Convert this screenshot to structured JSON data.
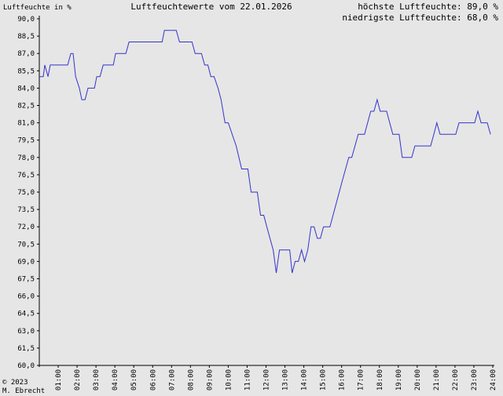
{
  "chart_data": {
    "type": "line",
    "title": "Luftfeuchtewerte vom 22.01.2026",
    "ylabel": "Luftfeuchte in %",
    "max_label": "höchste Luftfeuchte: 89,0 %",
    "min_label": "niedrigste Luftfeuchte: 68,0 %",
    "ylim": [
      60,
      90
    ],
    "xlim": [
      0,
      24
    ],
    "y_ticks": [
      {
        "value": 60.0,
        "label": "60,0"
      },
      {
        "value": 61.5,
        "label": "61,5"
      },
      {
        "value": 63.0,
        "label": "63,0"
      },
      {
        "value": 64.5,
        "label": "64,5"
      },
      {
        "value": 66.0,
        "label": "66,0"
      },
      {
        "value": 67.5,
        "label": "67,5"
      },
      {
        "value": 69.0,
        "label": "69,0"
      },
      {
        "value": 70.5,
        "label": "70,5"
      },
      {
        "value": 72.0,
        "label": "72,0"
      },
      {
        "value": 73.5,
        "label": "73,5"
      },
      {
        "value": 75.0,
        "label": "75,0"
      },
      {
        "value": 76.5,
        "label": "76,5"
      },
      {
        "value": 78.0,
        "label": "78,0"
      },
      {
        "value": 79.5,
        "label": "79,5"
      },
      {
        "value": 81.0,
        "label": "81,0"
      },
      {
        "value": 82.5,
        "label": "82,5"
      },
      {
        "value": 84.0,
        "label": "84,0"
      },
      {
        "value": 85.5,
        "label": "85,5"
      },
      {
        "value": 87.0,
        "label": "87,0"
      },
      {
        "value": 88.5,
        "label": "88,5"
      },
      {
        "value": 90.0,
        "label": "90,0"
      }
    ],
    "x_ticks": [
      {
        "value": 1,
        "label": "01:00"
      },
      {
        "value": 2,
        "label": "02:00"
      },
      {
        "value": 3,
        "label": "03:00"
      },
      {
        "value": 4,
        "label": "04:00"
      },
      {
        "value": 5,
        "label": "05:00"
      },
      {
        "value": 6,
        "label": "06:00"
      },
      {
        "value": 7,
        "label": "07:00"
      },
      {
        "value": 8,
        "label": "08:00"
      },
      {
        "value": 9,
        "label": "09:00"
      },
      {
        "value": 10,
        "label": "10:00"
      },
      {
        "value": 11,
        "label": "11:00"
      },
      {
        "value": 12,
        "label": "12:00"
      },
      {
        "value": 13,
        "label": "13:00"
      },
      {
        "value": 14,
        "label": "14:00"
      },
      {
        "value": 15,
        "label": "15:00"
      },
      {
        "value": 16,
        "label": "16:00"
      },
      {
        "value": 17,
        "label": "17:00"
      },
      {
        "value": 18,
        "label": "18:00"
      },
      {
        "value": 19,
        "label": "19:00"
      },
      {
        "value": 20,
        "label": "20:00"
      },
      {
        "value": 21,
        "label": "21:00"
      },
      {
        "value": 22,
        "label": "22:00"
      },
      {
        "value": 23,
        "label": "23:00"
      },
      {
        "value": 24,
        "label": "24:00"
      }
    ],
    "grid": false,
    "line_color": "#3333cc",
    "series": [
      {
        "points": [
          [
            0.0,
            85.0
          ],
          [
            0.21,
            85.0
          ],
          [
            0.29,
            86.0
          ],
          [
            0.46,
            85.0
          ],
          [
            0.58,
            86.0
          ],
          [
            1.5,
            86.0
          ],
          [
            1.67,
            87.0
          ],
          [
            1.79,
            87.0
          ],
          [
            1.92,
            85.0
          ],
          [
            2.12,
            84.0
          ],
          [
            2.25,
            83.0
          ],
          [
            2.42,
            83.0
          ],
          [
            2.58,
            84.0
          ],
          [
            2.92,
            84.0
          ],
          [
            3.04,
            85.0
          ],
          [
            3.21,
            85.0
          ],
          [
            3.38,
            86.0
          ],
          [
            3.92,
            86.0
          ],
          [
            4.04,
            87.0
          ],
          [
            4.58,
            87.0
          ],
          [
            4.75,
            88.0
          ],
          [
            6.5,
            88.0
          ],
          [
            6.62,
            89.0
          ],
          [
            7.25,
            89.0
          ],
          [
            7.42,
            88.0
          ],
          [
            8.08,
            88.0
          ],
          [
            8.25,
            87.0
          ],
          [
            8.58,
            87.0
          ],
          [
            8.75,
            86.0
          ],
          [
            8.92,
            86.0
          ],
          [
            9.08,
            85.0
          ],
          [
            9.25,
            85.0
          ],
          [
            9.46,
            84.0
          ],
          [
            9.62,
            83.0
          ],
          [
            9.83,
            81.0
          ],
          [
            10.0,
            81.0
          ],
          [
            10.42,
            79.0
          ],
          [
            10.71,
            77.0
          ],
          [
            11.04,
            77.0
          ],
          [
            11.21,
            75.0
          ],
          [
            11.54,
            75.0
          ],
          [
            11.71,
            73.0
          ],
          [
            11.88,
            73.0
          ],
          [
            12.04,
            72.0
          ],
          [
            12.21,
            71.0
          ],
          [
            12.38,
            70.0
          ],
          [
            12.54,
            68.0
          ],
          [
            12.71,
            70.0
          ],
          [
            13.25,
            70.0
          ],
          [
            13.38,
            68.0
          ],
          [
            13.54,
            69.0
          ],
          [
            13.71,
            69.0
          ],
          [
            13.88,
            70.0
          ],
          [
            14.04,
            69.0
          ],
          [
            14.21,
            70.0
          ],
          [
            14.38,
            72.0
          ],
          [
            14.54,
            72.0
          ],
          [
            14.71,
            71.0
          ],
          [
            14.88,
            71.0
          ],
          [
            15.04,
            72.0
          ],
          [
            15.38,
            72.0
          ],
          [
            15.71,
            74.0
          ],
          [
            16.04,
            76.0
          ],
          [
            16.38,
            78.0
          ],
          [
            16.54,
            78.0
          ],
          [
            16.88,
            80.0
          ],
          [
            17.21,
            80.0
          ],
          [
            17.54,
            82.0
          ],
          [
            17.71,
            82.0
          ],
          [
            17.88,
            83.0
          ],
          [
            18.04,
            82.0
          ],
          [
            18.38,
            82.0
          ],
          [
            18.71,
            80.0
          ],
          [
            19.04,
            80.0
          ],
          [
            19.21,
            78.0
          ],
          [
            19.71,
            78.0
          ],
          [
            19.88,
            79.0
          ],
          [
            20.71,
            79.0
          ],
          [
            20.88,
            80.0
          ],
          [
            21.04,
            81.0
          ],
          [
            21.21,
            80.0
          ],
          [
            22.04,
            80.0
          ],
          [
            22.21,
            81.0
          ],
          [
            23.04,
            81.0
          ],
          [
            23.21,
            82.0
          ],
          [
            23.38,
            81.0
          ],
          [
            23.71,
            81.0
          ],
          [
            23.88,
            80.0
          ]
        ]
      }
    ]
  },
  "copyright": "© 2023",
  "author": "M. Ebrecht"
}
